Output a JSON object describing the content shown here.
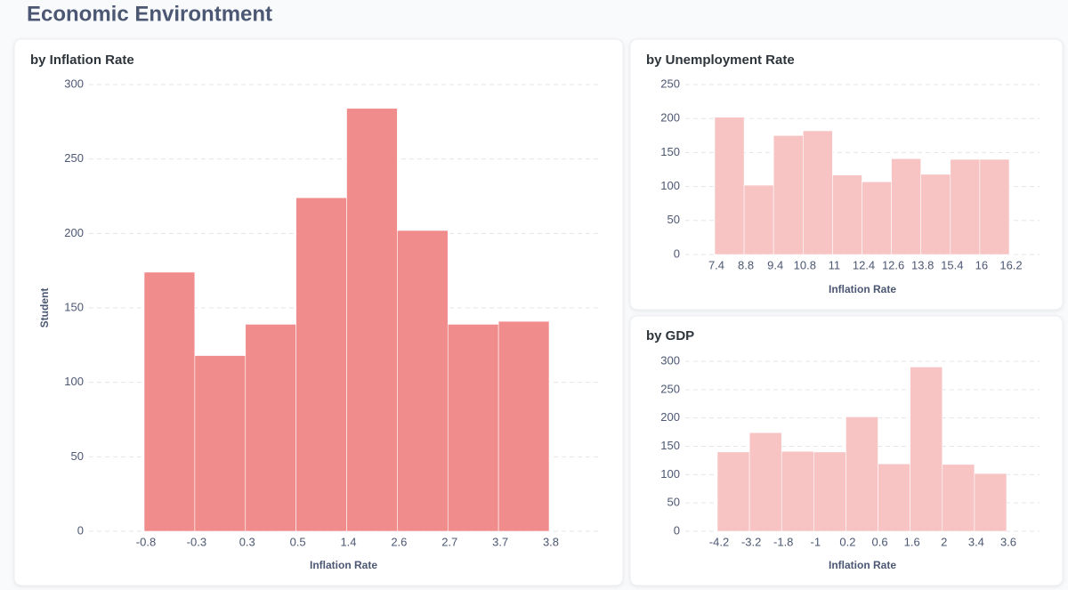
{
  "title": "Economic Environtment",
  "chart_data": [
    {
      "type": "histogram",
      "title": "by Inflation Rate",
      "x_label": "Inflation Rate",
      "y_label": "Student",
      "bins": [
        "-0.8",
        "-0.3",
        "0.3",
        "0.5",
        "1.4",
        "2.6",
        "2.7",
        "3.7",
        "3.8"
      ],
      "values": [
        174,
        118,
        139,
        224,
        284,
        202,
        139,
        141
      ],
      "color": "#f08c8c",
      "ylim": [
        0,
        300
      ],
      "yticks": [
        0,
        50,
        100,
        150,
        200,
        250,
        300
      ],
      "grid": true
    },
    {
      "type": "histogram",
      "title": "by Unemployment Rate",
      "x_label": "Inflation Rate",
      "bins": [
        "7.4",
        "8.8",
        "9.4",
        "10.8",
        "11",
        "12.4",
        "12.6",
        "13.8",
        "15.4",
        "16",
        "16.2"
      ],
      "values": [
        202,
        102,
        175,
        182,
        117,
        107,
        141,
        118,
        140,
        140
      ],
      "color": "#f7c3c3",
      "ylim": [
        0,
        250
      ],
      "yticks": [
        0,
        50,
        100,
        150,
        200,
        250
      ],
      "grid": true
    },
    {
      "type": "histogram",
      "title": "by GDP",
      "x_label": "Inflation Rate",
      "bins": [
        "-4.2",
        "-3.2",
        "-1.8",
        "-1",
        "0.2",
        "0.6",
        "1.6",
        "2",
        "3.4",
        "3.6"
      ],
      "values": [
        140,
        174,
        141,
        140,
        202,
        119,
        290,
        118,
        102
      ],
      "color": "#f7c3c3",
      "ylim": [
        0,
        300
      ],
      "yticks": [
        0,
        50,
        100,
        150,
        200,
        250,
        300
      ],
      "grid": true
    }
  ]
}
